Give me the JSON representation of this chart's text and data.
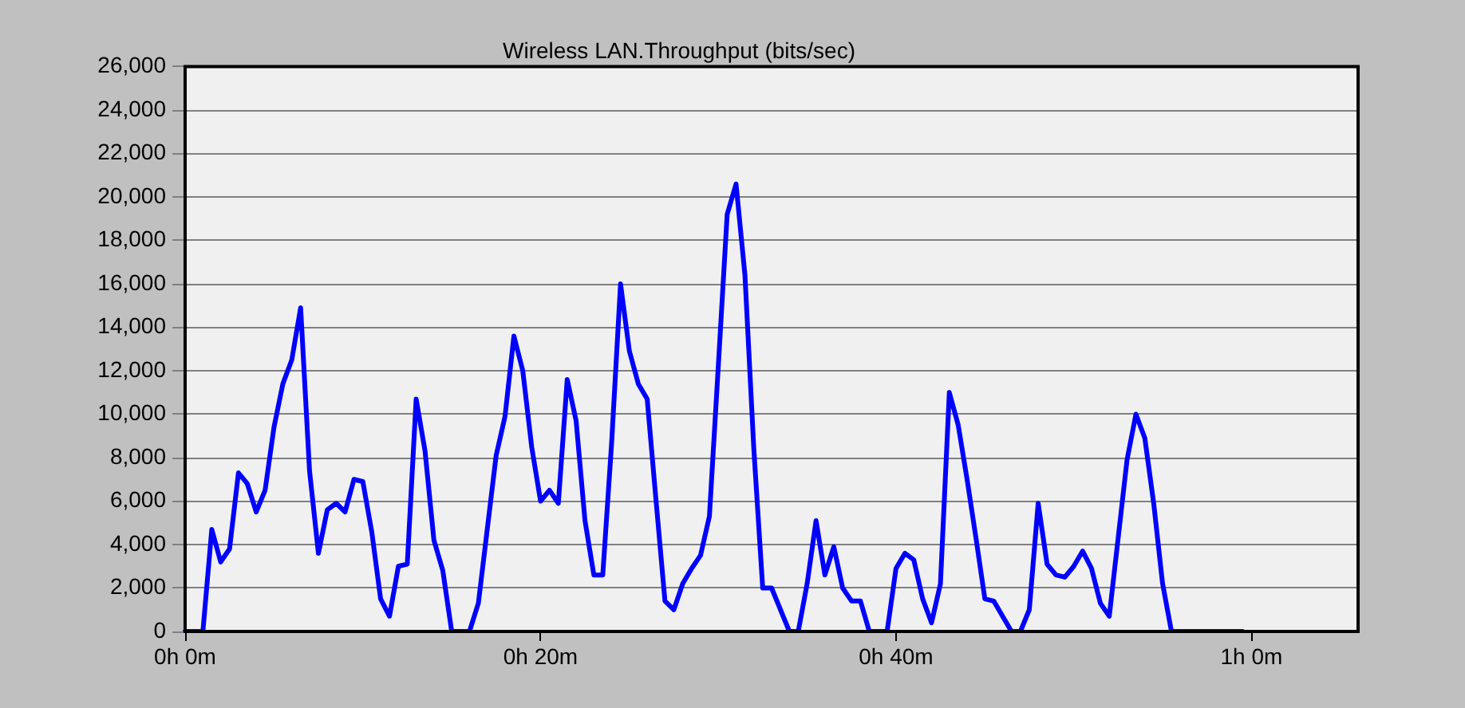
{
  "chart_data": {
    "type": "line",
    "title": "Wireless LAN.Throughput (bits/sec)",
    "categories": [
      "0h 0m",
      null,
      null,
      null,
      null,
      null,
      null,
      null,
      null,
      null,
      null,
      null,
      null,
      null,
      null,
      null,
      null,
      null,
      null,
      null,
      null,
      null,
      null,
      null,
      null,
      null,
      null,
      null,
      null,
      null,
      null,
      null,
      null,
      null,
      null,
      null,
      null,
      null,
      null,
      null,
      "0h 20m",
      null,
      null,
      null,
      null,
      null,
      null,
      null,
      null,
      null,
      null,
      null,
      null,
      null,
      null,
      null,
      null,
      null,
      null,
      null,
      null,
      null,
      null,
      null,
      null,
      null,
      null,
      null,
      null,
      null,
      null,
      null,
      null,
      null,
      null,
      null,
      null,
      null,
      null,
      null,
      "0h 40m",
      null,
      null,
      null,
      null,
      null,
      null,
      null,
      null,
      null,
      null,
      null,
      null,
      null,
      null,
      null,
      null,
      null,
      null,
      null,
      null,
      null,
      null,
      null,
      null,
      null,
      null,
      null,
      null,
      null,
      null,
      null,
      null,
      null,
      null,
      null,
      null,
      null,
      null,
      null,
      "1h 0m",
      null,
      null,
      null,
      null,
      null,
      null,
      null,
      null,
      null,
      null,
      null,
      null
    ],
    "series": [
      {
        "color": "#0000ff",
        "values": [
          0,
          0,
          0,
          4700,
          3200,
          3800,
          7300,
          6800,
          5500,
          6500,
          9400,
          11400,
          12500,
          14900,
          7400,
          3600,
          5600,
          5900,
          5500,
          7000,
          6900,
          4600,
          1500,
          700,
          3000,
          3100,
          10700,
          8300,
          4200,
          2800,
          0,
          0,
          0,
          1300,
          4700,
          8100,
          9900,
          13600,
          12000,
          8500,
          6000,
          6500,
          5900,
          11600,
          9700,
          5100,
          2600,
          2600,
          8700,
          16000,
          12900,
          11400,
          10700,
          6000,
          1400,
          1000,
          2200,
          2900,
          3500,
          5300,
          12200,
          19200,
          20600,
          16400,
          8400,
          2000,
          2000,
          1000,
          0,
          0,
          2200,
          5100,
          2600,
          3900,
          2000,
          1400,
          1400,
          0,
          0,
          0,
          2900,
          3600,
          3300,
          1500,
          400,
          2200,
          11000,
          9500,
          7000,
          4300,
          1500,
          1400,
          700,
          0,
          0,
          1000,
          5900,
          3100,
          2600,
          2500,
          3000,
          3700,
          2900,
          1300,
          700,
          4300,
          7900,
          10000,
          8900,
          5900,
          2200,
          0,
          0,
          0,
          0,
          0,
          0,
          0,
          0,
          0,
          null,
          null,
          null,
          null,
          null,
          null,
          null,
          null,
          null,
          null,
          null,
          null,
          null
        ]
      }
    ],
    "ylim": [
      0,
      26000
    ],
    "yticks": [
      {
        "value": 0,
        "label": "0"
      },
      {
        "value": 2000,
        "label": "2,000"
      },
      {
        "value": 4000,
        "label": "4,000"
      },
      {
        "value": 6000,
        "label": "6,000"
      },
      {
        "value": 8000,
        "label": "8,000"
      },
      {
        "value": 10000,
        "label": "10,000"
      },
      {
        "value": 12000,
        "label": "12,000"
      },
      {
        "value": 14000,
        "label": "14,000"
      },
      {
        "value": 16000,
        "label": "16,000"
      },
      {
        "value": 18000,
        "label": "18,000"
      },
      {
        "value": 20000,
        "label": "20,000"
      },
      {
        "value": 22000,
        "label": "22,000"
      },
      {
        "value": 24000,
        "label": "24,000"
      },
      {
        "value": 26000,
        "label": "26,000"
      }
    ],
    "grid": "y",
    "marker": "none",
    "line_style": "solid",
    "legend": false
  }
}
